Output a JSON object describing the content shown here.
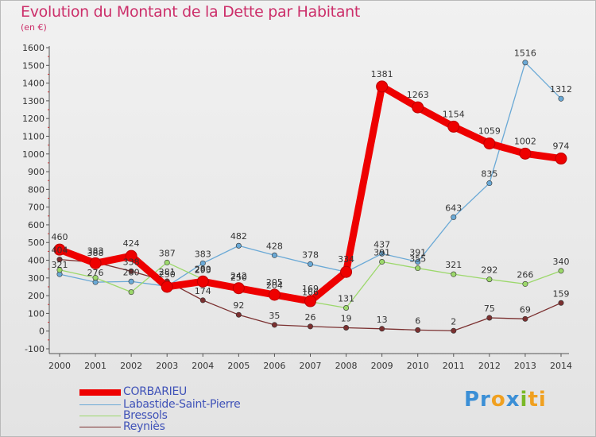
{
  "title": "Evolution du Montant de la Dette par Habitant",
  "unit": "(en €)",
  "logo": "Proxiti",
  "chart_data": {
    "type": "line",
    "x": [
      2000,
      2001,
      2002,
      2003,
      2004,
      2005,
      2006,
      2007,
      2008,
      2009,
      2010,
      2011,
      2012,
      2013,
      2014
    ],
    "ylim": [
      -100,
      1600
    ],
    "yticks": [
      -100,
      0,
      100,
      200,
      300,
      400,
      500,
      600,
      700,
      800,
      900,
      1000,
      1100,
      1200,
      1300,
      1400,
      1500,
      1600
    ],
    "grid": false,
    "legend": "bottom-left",
    "series": [
      {
        "name": "Labastide-Saint-Pierre",
        "color": "#6aa9d6",
        "values": [
          321,
          276,
          280,
          253,
          383,
          482,
          428,
          378,
          334,
          437,
          391,
          643,
          835,
          1516,
          1312
        ],
        "labels": [
          "321",
          "276",
          "280",
          "",
          "383",
          "482",
          "428",
          "378",
          "",
          "437",
          "391",
          "643",
          "835",
          "1516",
          "1312"
        ]
      },
      {
        "name": "Bressols",
        "color": "#9cd86b",
        "values": [
          345,
          301,
          220,
          387,
          293,
          250,
          204,
          166,
          131,
          391,
          355,
          321,
          292,
          266,
          340
        ],
        "labels": [
          "",
          "",
          "",
          "387",
          "293",
          "250",
          "204",
          "166",
          "131",
          "391",
          "355",
          "321",
          "292",
          "266",
          "340"
        ]
      },
      {
        "name": "Reyniès",
        "color": "#7b3030",
        "values": [
          404,
          388,
          338,
          281,
          174,
          92,
          35,
          26,
          19,
          13,
          6,
          2,
          75,
          69,
          159
        ],
        "labels": [
          "404",
          "388",
          "338",
          "281",
          "174",
          "92",
          "35",
          "26",
          "19",
          "13",
          "6",
          "2",
          "75",
          "69",
          "159"
        ]
      },
      {
        "name": "CORBARIEU",
        "color": "#ee0000",
        "values": [
          460,
          383,
          424,
          250,
          280,
          242,
          205,
          169,
          334,
          1381,
          1263,
          1154,
          1059,
          1002,
          974
        ],
        "labels": [
          "460",
          "383",
          "424",
          "250",
          "280",
          "242",
          "205",
          "169",
          "334",
          "1381",
          "1263",
          "1154",
          "1059",
          "1002",
          "974"
        ]
      }
    ]
  },
  "legend_order": [
    "CORBARIEU",
    "Labastide-Saint-Pierre",
    "Bressols",
    "Reyniès"
  ]
}
